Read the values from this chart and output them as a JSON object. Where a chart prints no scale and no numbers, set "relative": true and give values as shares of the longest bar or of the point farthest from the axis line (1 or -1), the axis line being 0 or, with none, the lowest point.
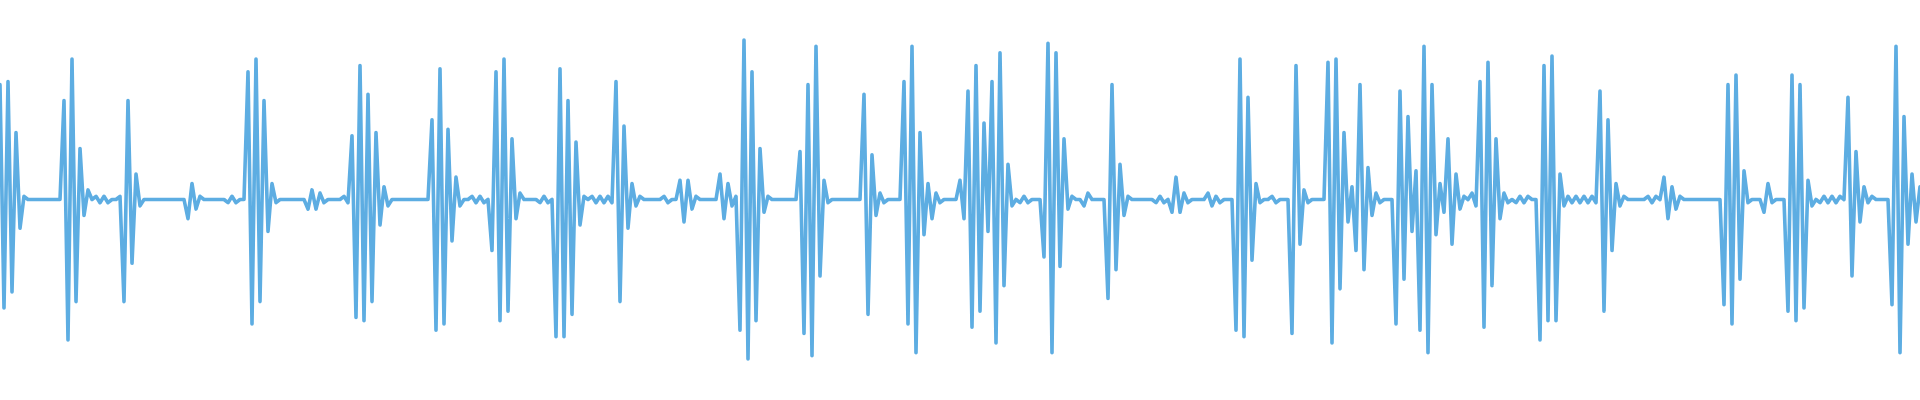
{
  "chart_data": {
    "type": "line",
    "relative": true,
    "color": "#5dade2",
    "categories": [
      null,
      null,
      null,
      null,
      null,
      null,
      null,
      null,
      null,
      null,
      null,
      null,
      null,
      null,
      null,
      null,
      null,
      null,
      null,
      null,
      null,
      null,
      null,
      null,
      null,
      null,
      null,
      null,
      null,
      null,
      null,
      null,
      null,
      null,
      null,
      null,
      null,
      null,
      null,
      null,
      null,
      null,
      null,
      null,
      null,
      null,
      null,
      null,
      null,
      null,
      null,
      null,
      null,
      null,
      null,
      null,
      null,
      null,
      null,
      null,
      null,
      null,
      null,
      null,
      null,
      null,
      null,
      null,
      null,
      null,
      null,
      null,
      null,
      null,
      null,
      null,
      null,
      null,
      null,
      null,
      null,
      null,
      null,
      null,
      null,
      null,
      null,
      null,
      null,
      null,
      null,
      null,
      null,
      null,
      null,
      null,
      null,
      null,
      null,
      null,
      null,
      null,
      null,
      null,
      null,
      null,
      null,
      null,
      null,
      null,
      null,
      null,
      null,
      null,
      null,
      null,
      null,
      null,
      null,
      null,
      null,
      null,
      null,
      null,
      null,
      null,
      null,
      null,
      null,
      null,
      null,
      null,
      null,
      null,
      null,
      null,
      null,
      null,
      null,
      null,
      null,
      null,
      null,
      null,
      null,
      null,
      null,
      null,
      null,
      null,
      null,
      null,
      null,
      null,
      null,
      null,
      null,
      null,
      null,
      null,
      null,
      null,
      null,
      null,
      null,
      null,
      null,
      null,
      null,
      null,
      null,
      null,
      null,
      null,
      null,
      null,
      null,
      null,
      null,
      null,
      null,
      null,
      null,
      null,
      null,
      null,
      null,
      null,
      null,
      null,
      null,
      null,
      null,
      null,
      null,
      null,
      null,
      null,
      null,
      null,
      null,
      null,
      null,
      null,
      null,
      null,
      null,
      null,
      null,
      null,
      null,
      null,
      null,
      null,
      null,
      null,
      null,
      null,
      null,
      null,
      null,
      null,
      null,
      null,
      null,
      null,
      null,
      null,
      null,
      null,
      null,
      null,
      null,
      null,
      null,
      null,
      null,
      null,
      null,
      null,
      null,
      null,
      null,
      null,
      null,
      null,
      null,
      null,
      null,
      null,
      null,
      null,
      null,
      null,
      null,
      null,
      null,
      null,
      null,
      null,
      null,
      null,
      null,
      null,
      null,
      null,
      null,
      null,
      null,
      null,
      null,
      null,
      null,
      null,
      null,
      null,
      null,
      null,
      null,
      null,
      null,
      null,
      null,
      null,
      null,
      null,
      null,
      null,
      null,
      null,
      null,
      null,
      null,
      null,
      null,
      null,
      null,
      null,
      null,
      null,
      null,
      null,
      null,
      null,
      null,
      null,
      null,
      null,
      null,
      null,
      null,
      null,
      null,
      null,
      null,
      null,
      null,
      null,
      null,
      null,
      null,
      null,
      null,
      null,
      null,
      null,
      null,
      null,
      null,
      null,
      null,
      null,
      null,
      null,
      null,
      null,
      null,
      null,
      null,
      null,
      null,
      null,
      null,
      null,
      null,
      null,
      null,
      null,
      null,
      null,
      null,
      null,
      null,
      null,
      null,
      null,
      null,
      null,
      null,
      null,
      null,
      null,
      null,
      null,
      null,
      null,
      null,
      null,
      null,
      null,
      null,
      null,
      null,
      null,
      null,
      null,
      null,
      null,
      null,
      null,
      null,
      null,
      null,
      null,
      null,
      null,
      null,
      null,
      null,
      null,
      null,
      null,
      null,
      null,
      null,
      null,
      null,
      null,
      null,
      null,
      null,
      null,
      null,
      null,
      null,
      null,
      null,
      null,
      null,
      null,
      null,
      null,
      null,
      null,
      null,
      null,
      null,
      null,
      null,
      null,
      null,
      null,
      null,
      null,
      null,
      null,
      null,
      null,
      null,
      null,
      null,
      null,
      null,
      null,
      null,
      null,
      null,
      null,
      null,
      null,
      null,
      null,
      null,
      null,
      null,
      null,
      null,
      null,
      null,
      null,
      null,
      null,
      null,
      null,
      null,
      null,
      null,
      null,
      null,
      null,
      null,
      null,
      null,
      null,
      null,
      null,
      null,
      null,
      null,
      null,
      null,
      null,
      null,
      null,
      null,
      null,
      null,
      null,
      null,
      null,
      null
    ],
    "values": [
      0.86,
      0.16,
      0.87,
      0.21,
      0.71,
      0.41,
      0.51,
      0.5,
      0.5,
      0.5,
      0.5,
      0.5,
      0.5,
      0.5,
      0.5,
      0.5,
      0.81,
      0.06,
      0.94,
      0.18,
      0.66,
      0.45,
      0.53,
      0.5,
      0.51,
      0.49,
      0.51,
      0.49,
      0.5,
      0.5,
      0.51,
      0.18,
      0.81,
      0.3,
      0.58,
      0.48,
      0.5,
      0.5,
      0.5,
      0.5,
      0.5,
      0.5,
      0.5,
      0.5,
      0.5,
      0.5,
      0.5,
      0.44,
      0.55,
      0.47,
      0.51,
      0.5,
      0.5,
      0.5,
      0.5,
      0.5,
      0.5,
      0.49,
      0.51,
      0.49,
      0.5,
      0.5,
      0.9,
      0.11,
      0.94,
      0.18,
      0.81,
      0.4,
      0.55,
      0.49,
      0.5,
      0.5,
      0.5,
      0.5,
      0.5,
      0.5,
      0.5,
      0.47,
      0.53,
      0.47,
      0.52,
      0.49,
      0.5,
      0.5,
      0.5,
      0.5,
      0.51,
      0.49,
      0.7,
      0.13,
      0.92,
      0.12,
      0.83,
      0.18,
      0.71,
      0.42,
      0.54,
      0.48,
      0.5,
      0.5,
      0.5,
      0.5,
      0.5,
      0.5,
      0.5,
      0.5,
      0.5,
      0.5,
      0.75,
      0.09,
      0.91,
      0.11,
      0.72,
      0.37,
      0.57,
      0.48,
      0.5,
      0.5,
      0.51,
      0.49,
      0.51,
      0.49,
      0.5,
      0.34,
      0.9,
      0.12,
      0.94,
      0.15,
      0.69,
      0.44,
      0.52,
      0.5,
      0.5,
      0.5,
      0.5,
      0.49,
      0.51,
      0.49,
      0.5,
      0.07,
      0.91,
      0.07,
      0.81,
      0.14,
      0.68,
      0.42,
      0.51,
      0.5,
      0.51,
      0.49,
      0.51,
      0.49,
      0.51,
      0.49,
      0.87,
      0.18,
      0.73,
      0.41,
      0.55,
      0.48,
      0.51,
      0.5,
      0.5,
      0.5,
      0.5,
      0.5,
      0.51,
      0.49,
      0.5,
      0.5,
      0.56,
      0.43,
      0.56,
      0.47,
      0.51,
      0.5,
      0.5,
      0.5,
      0.5,
      0.5,
      0.58,
      0.44,
      0.55,
      0.48,
      0.51,
      0.09,
      1,
      0,
      0.9,
      0.12,
      0.66,
      0.46,
      0.51,
      0.5,
      0.5,
      0.5,
      0.5,
      0.5,
      0.5,
      0.5,
      0.65,
      0.08,
      0.86,
      0.01,
      0.98,
      0.26,
      0.56,
      0.49,
      0.5,
      0.5,
      0.5,
      0.5,
      0.5,
      0.5,
      0.5,
      0.5,
      0.83,
      0.14,
      0.64,
      0.45,
      0.52,
      0.49,
      0.5,
      0.5,
      0.5,
      0.5,
      0.87,
      0.11,
      0.98,
      0.02,
      0.71,
      0.39,
      0.55,
      0.44,
      0.52,
      0.49,
      0.5,
      0.5,
      0.5,
      0.5,
      0.56,
      0.44,
      0.84,
      0.1,
      0.92,
      0.15,
      0.74,
      0.4,
      0.87,
      0.05,
      0.96,
      0.23,
      0.61,
      0.48,
      0.5,
      0.49,
      0.51,
      0.49,
      0.5,
      0.5,
      0.5,
      0.32,
      0.99,
      0.02,
      0.96,
      0.29,
      0.69,
      0.47,
      0.51,
      0.5,
      0.5,
      0.48,
      0.52,
      0.5,
      0.5,
      0.5,
      0.5,
      0.19,
      0.86,
      0.28,
      0.61,
      0.45,
      0.51,
      0.5,
      0.5,
      0.5,
      0.5,
      0.5,
      0.5,
      0.49,
      0.51,
      0.49,
      0.5,
      0.46,
      0.57,
      0.46,
      0.52,
      0.49,
      0.5,
      0.5,
      0.5,
      0.5,
      0.52,
      0.48,
      0.51,
      0.49,
      0.5,
      0.5,
      0.5,
      0.09,
      0.94,
      0.07,
      0.82,
      0.31,
      0.55,
      0.49,
      0.5,
      0.5,
      0.51,
      0.49,
      0.5,
      0.5,
      0.5,
      0.08,
      0.92,
      0.36,
      0.53,
      0.49,
      0.5,
      0.5,
      0.5,
      0.5,
      0.93,
      0.05,
      0.94,
      0.22,
      0.71,
      0.43,
      0.54,
      0.34,
      0.86,
      0.28,
      0.6,
      0.45,
      0.52,
      0.49,
      0.5,
      0.5,
      0.5,
      0.11,
      0.84,
      0.25,
      0.76,
      0.4,
      0.59,
      0.09,
      0.98,
      0.02,
      0.86,
      0.39,
      0.55,
      0.46,
      0.69,
      0.36,
      0.58,
      0.47,
      0.51,
      0.5,
      0.52,
      0.48,
      0.87,
      0.1,
      0.93,
      0.23,
      0.69,
      0.44,
      0.52,
      0.49,
      0.5,
      0.49,
      0.51,
      0.49,
      0.51,
      0.5,
      0.5,
      0.06,
      0.92,
      0.12,
      0.95,
      0.12,
      0.58,
      0.48,
      0.51,
      0.49,
      0.51,
      0.49,
      0.51,
      0.49,
      0.51,
      0.49,
      0.84,
      0.15,
      0.75,
      0.34,
      0.55,
      0.48,
      0.51,
      0.5,
      0.5,
      0.5,
      0.5,
      0.5,
      0.51,
      0.49,
      0.51,
      0.5,
      0.57,
      0.44,
      0.54,
      0.47,
      0.51,
      0.5,
      0.5,
      0.5,
      0.5,
      0.5,
      0.5,
      0.5,
      0.5,
      0.5,
      0.5,
      0.17,
      0.86,
      0.11,
      0.89,
      0.25,
      0.59,
      0.49,
      0.5,
      0.5,
      0.5,
      0.46,
      0.55,
      0.49,
      0.5,
      0.5,
      0.5,
      0.15,
      0.89,
      0.12,
      0.86,
      0.16,
      0.56,
      0.48,
      0.5,
      0.49,
      0.51,
      0.49,
      0.51,
      0.49,
      0.51,
      0.5,
      0.82,
      0.26,
      0.65,
      0.43,
      0.54,
      0.49,
      0.51,
      0.5,
      0.5,
      0.5,
      0.5,
      0.17,
      0.98,
      0.02,
      0.76,
      0.36,
      0.58,
      0.43,
      0.54
    ]
  }
}
